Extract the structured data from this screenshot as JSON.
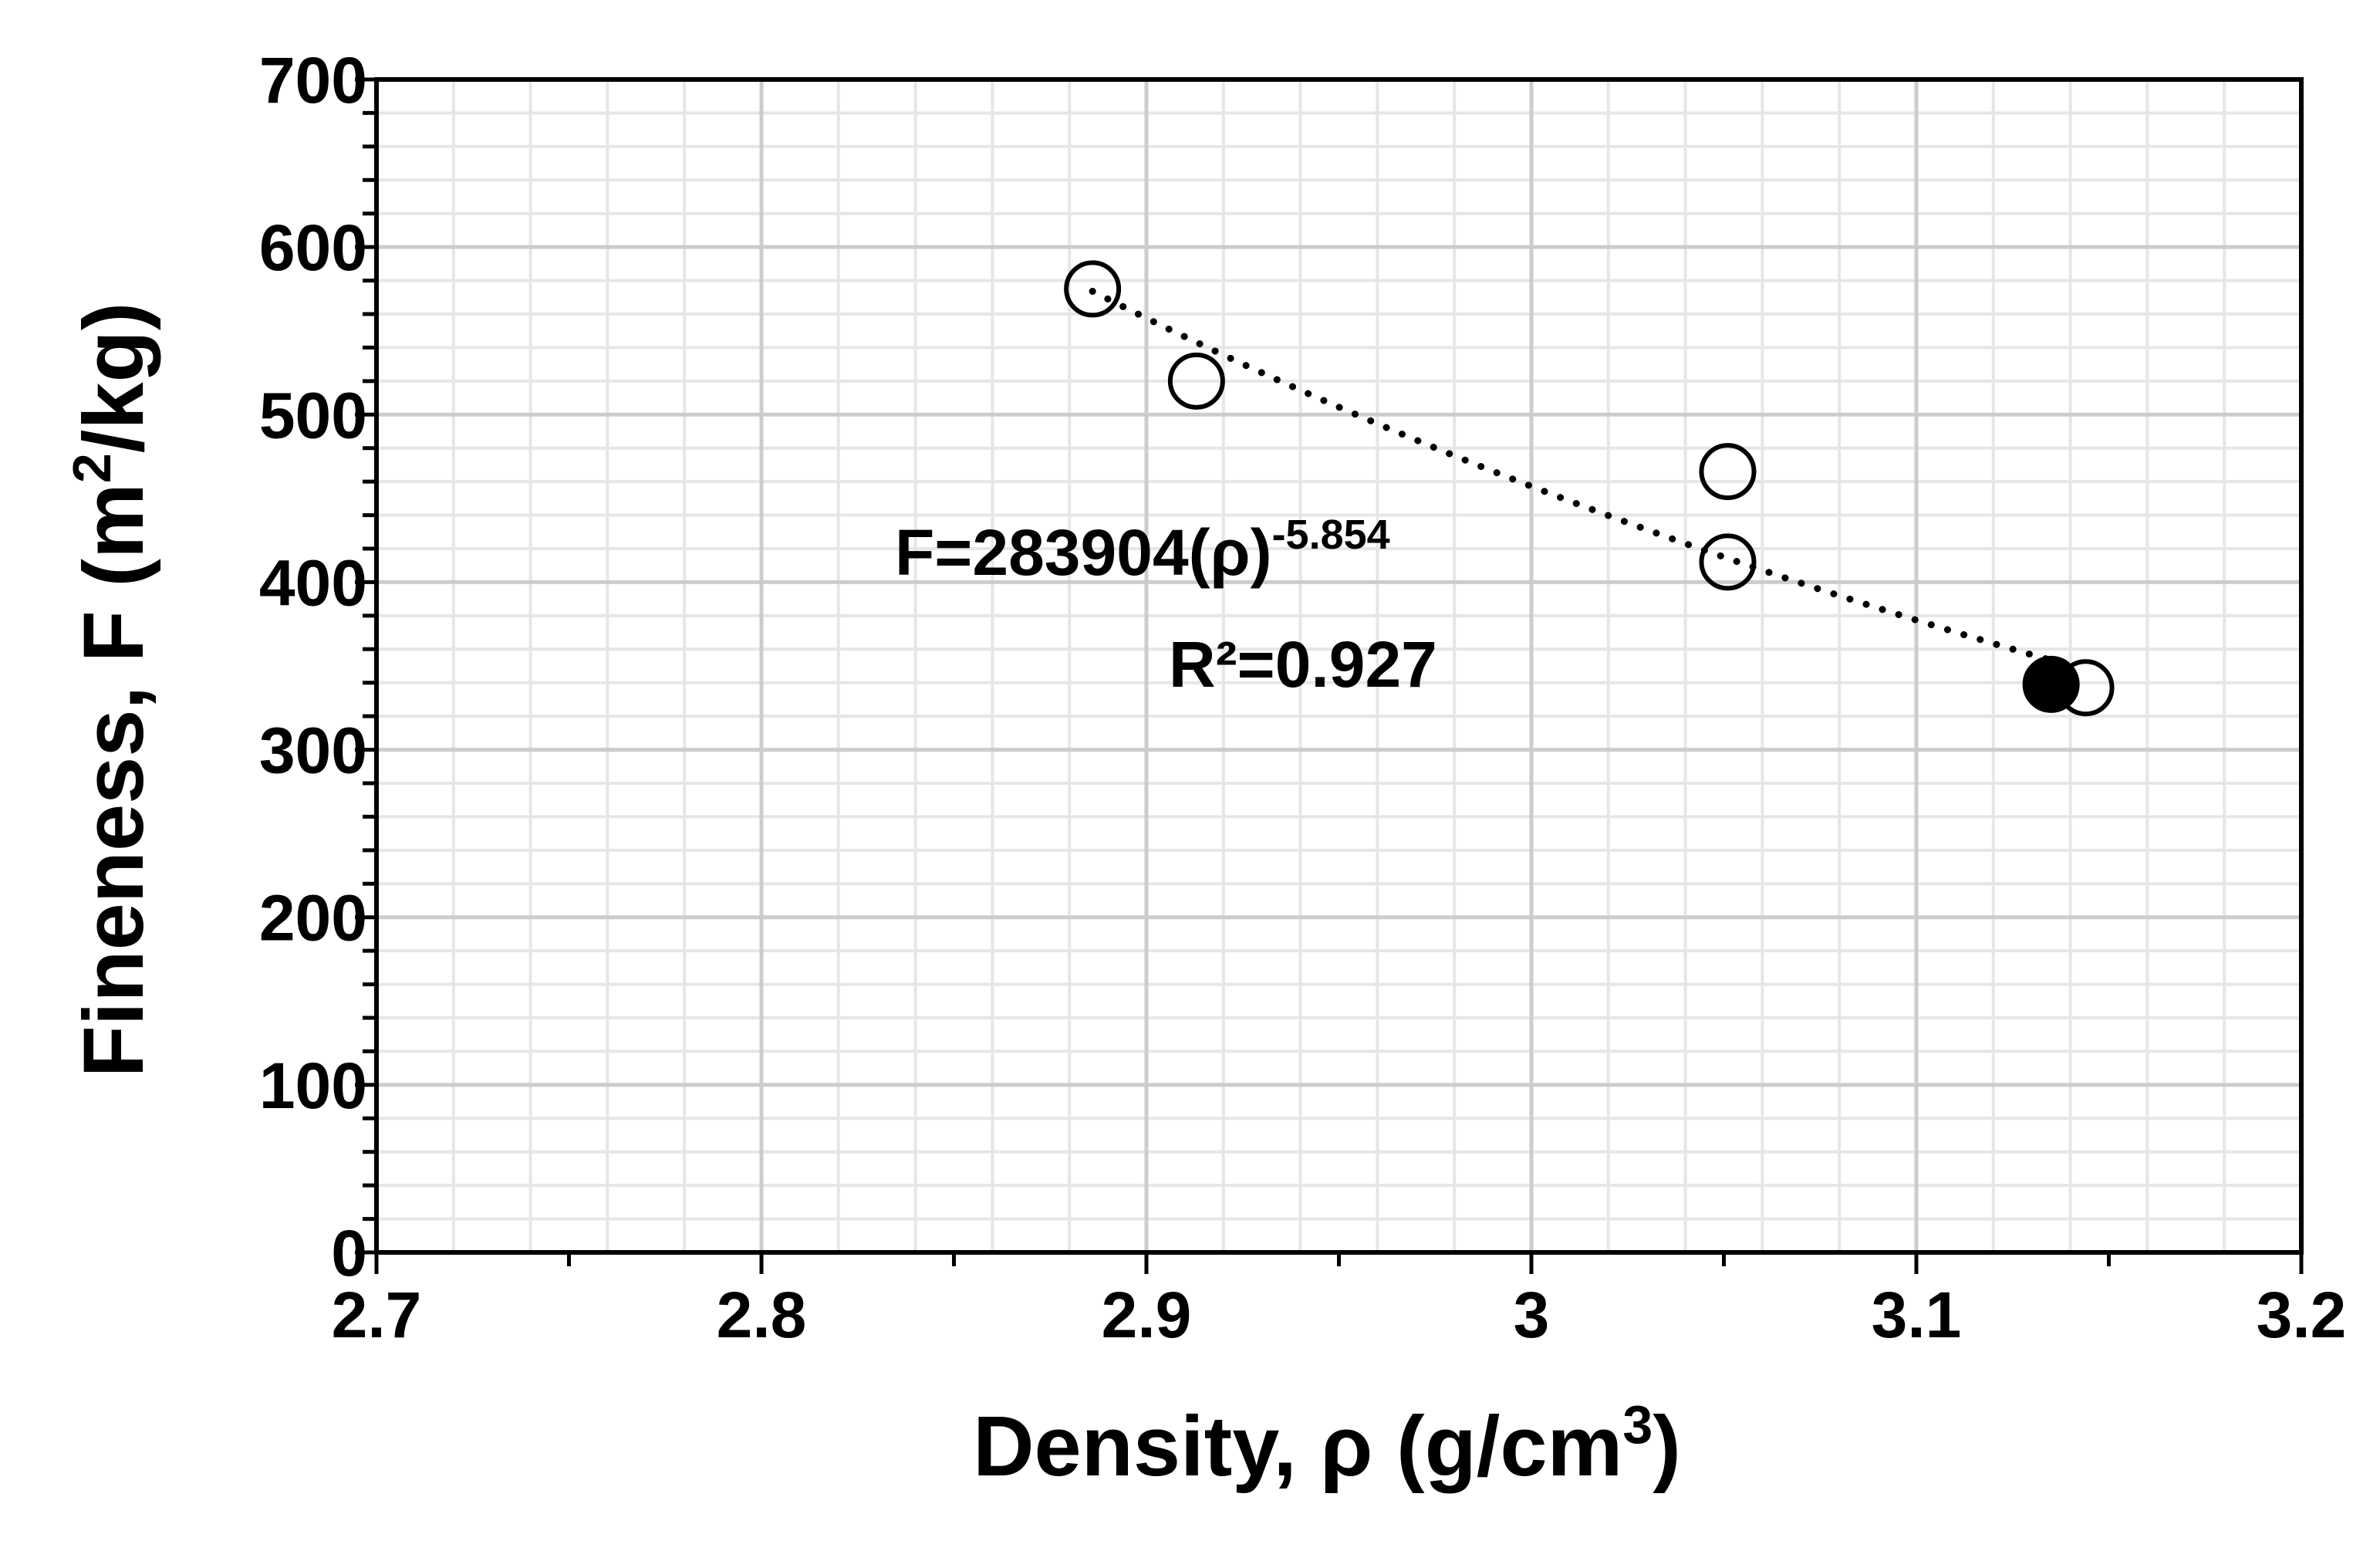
{
  "chart_data": {
    "type": "scatter",
    "xlabel": {
      "main": "Density, ρ (g/cm",
      "sup": "3",
      "end": ")"
    },
    "ylabel": {
      "main": "Fineness, F (m",
      "sup": "2",
      "end": "/kg)"
    },
    "xlim": [
      2.7,
      3.2
    ],
    "ylim": [
      0,
      700
    ],
    "x_ticks": [
      2.7,
      2.8,
      2.9,
      3.0,
      3.1,
      3.2
    ],
    "x_tick_labels": [
      "2.7",
      "2.8",
      "2.9",
      "3",
      "3.1",
      "3.2"
    ],
    "y_ticks": [
      0,
      100,
      200,
      300,
      400,
      500,
      600,
      700
    ],
    "y_tick_labels": [
      "0",
      "100",
      "200",
      "300",
      "400",
      "500",
      "600",
      "700"
    ],
    "grid": true,
    "series": [
      {
        "marker": "open-circle",
        "x": [
          2.886,
          2.913,
          3.051,
          3.051,
          3.144
        ],
        "y": [
          575,
          520,
          466,
          412,
          337
        ]
      },
      {
        "marker": "filled-circle",
        "x": [
          3.135
        ],
        "y": [
          339
        ]
      }
    ],
    "trendline": {
      "style": "dotted",
      "model": "power",
      "coefficient": 283904,
      "exponent": -5.854,
      "x_range": [
        2.886,
        3.135
      ]
    },
    "annotations": {
      "equation_main": "F=283904(ρ)",
      "equation_sup": "-5.854",
      "r_squared": "R²=0.927"
    },
    "colors": {
      "axis": "#000000",
      "grid_major": "#cccccc",
      "grid_minor": "#e6e6e6",
      "marker": "#000000",
      "background": "#ffffff"
    }
  }
}
